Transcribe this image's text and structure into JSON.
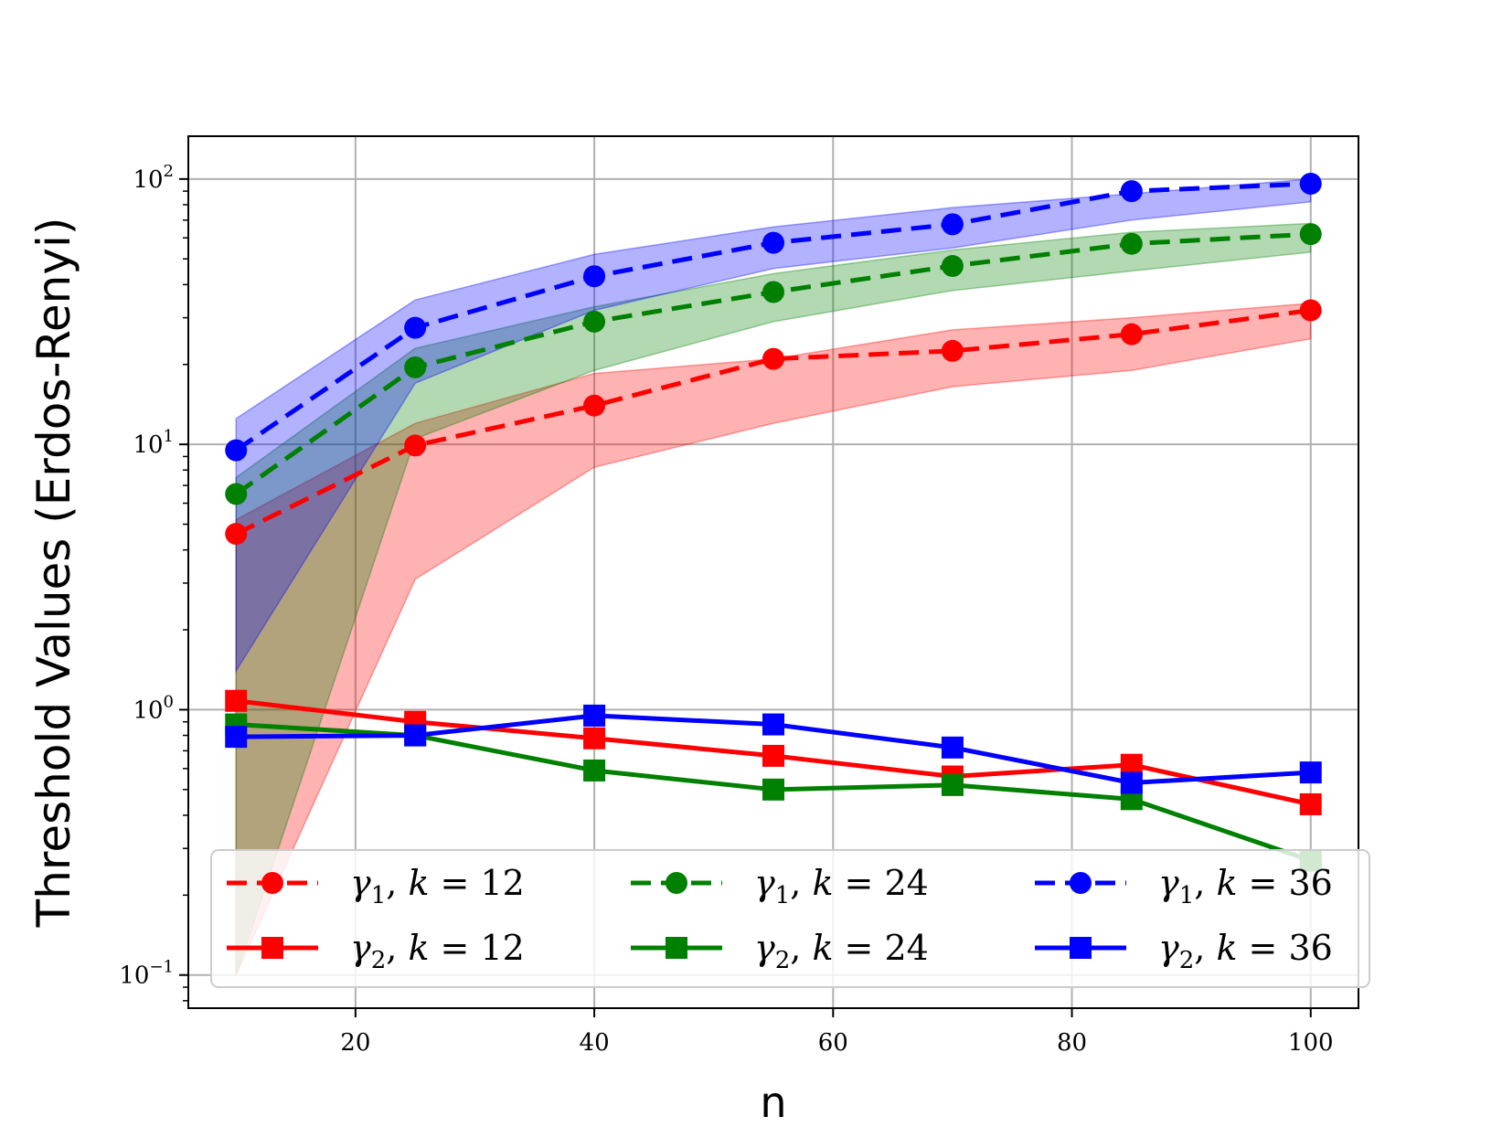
{
  "chart_data": {
    "type": "line",
    "title": "",
    "xlabel": "n",
    "ylabel": "Threshold Values (Erdos-Renyi)",
    "yscale": "log",
    "xlim": [
      6,
      104
    ],
    "ylim": [
      0.075,
      145
    ],
    "grid": true,
    "x": [
      10,
      25,
      40,
      55,
      70,
      85,
      100
    ],
    "xticks": [
      {
        "value": 20,
        "label": "20"
      },
      {
        "value": 40,
        "label": "40"
      },
      {
        "value": 60,
        "label": "60"
      },
      {
        "value": 80,
        "label": "80"
      },
      {
        "value": 100,
        "label": "100"
      }
    ],
    "yticks": [
      {
        "value": 100,
        "base": "10",
        "exp": "2"
      },
      {
        "value": 10,
        "base": "10",
        "exp": "1"
      },
      {
        "value": 1,
        "base": "10",
        "exp": "0"
      },
      {
        "value": 0.1,
        "base": "10",
        "exp": "−1"
      }
    ],
    "legend": {
      "location": "lower-center",
      "columns": 3
    },
    "series": [
      {
        "name": "γ1, k = 12",
        "sym": "γ",
        "sub": "1",
        "k": "12",
        "color": "#ff0000",
        "dashed": true,
        "marker": "circle",
        "values": [
          4.6,
          9.9,
          14,
          21,
          22.5,
          26,
          32
        ],
        "band_low": [
          0.1,
          3.1,
          8.2,
          12,
          16.5,
          19,
          25
        ],
        "band_high": [
          5.2,
          12,
          18.5,
          21,
          27,
          30,
          34
        ]
      },
      {
        "name": "γ1, k = 24",
        "sym": "γ",
        "sub": "1",
        "k": "24",
        "color": "#008000",
        "dashed": true,
        "marker": "circle",
        "values": [
          6.5,
          19.5,
          29,
          37.5,
          47,
          57,
          62
        ],
        "band_low": [
          0.1,
          10.5,
          19,
          29,
          38,
          45,
          53
        ],
        "band_high": [
          7.5,
          23,
          33,
          44,
          54,
          63,
          68
        ]
      },
      {
        "name": "γ1, k = 36",
        "sym": "γ",
        "sub": "1",
        "k": "36",
        "color": "#0000ff",
        "dashed": true,
        "marker": "circle",
        "values": [
          9.5,
          27.5,
          43,
          57.5,
          67.5,
          90,
          96
        ],
        "band_low": [
          1.4,
          17,
          32,
          46,
          55,
          70,
          82
        ],
        "band_high": [
          12.5,
          35,
          52,
          66,
          78,
          88,
          100
        ]
      },
      {
        "name": "γ2, k = 12",
        "sym": "γ",
        "sub": "2",
        "k": "12",
        "color": "#ff0000",
        "dashed": false,
        "marker": "square",
        "values": [
          1.08,
          0.9,
          0.78,
          0.67,
          0.56,
          0.62,
          0.44
        ]
      },
      {
        "name": "γ2, k = 24",
        "sym": "γ",
        "sub": "2",
        "k": "24",
        "color": "#008000",
        "dashed": false,
        "marker": "square",
        "values": [
          0.88,
          0.8,
          0.59,
          0.5,
          0.52,
          0.46,
          0.27
        ]
      },
      {
        "name": "γ2, k = 36",
        "sym": "γ",
        "sub": "2",
        "k": "36",
        "color": "#0000ff",
        "dashed": false,
        "marker": "square",
        "values": [
          0.79,
          0.8,
          0.95,
          0.88,
          0.72,
          0.53,
          0.58
        ]
      }
    ]
  }
}
